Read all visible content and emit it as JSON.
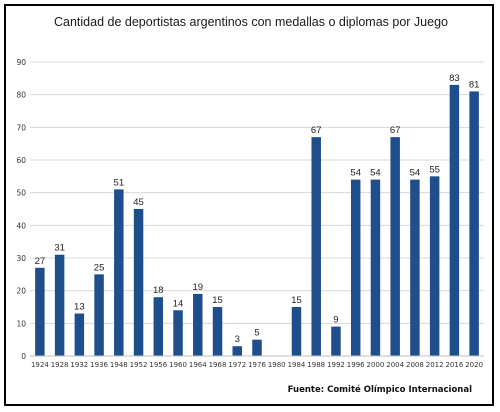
{
  "chart_data": {
    "type": "bar",
    "title": "Cantidad de deportistas argentinos con medallas o diplomas por Juego",
    "xlabel": "",
    "ylabel": "",
    "ylim": [
      0,
      90
    ],
    "yticks": [
      0,
      10,
      20,
      30,
      40,
      50,
      60,
      70,
      80,
      90
    ],
    "grid": true,
    "categories": [
      "1924",
      "1928",
      "1932",
      "1936",
      "1948",
      "1952",
      "1956",
      "1960",
      "1964",
      "1968",
      "1972",
      "1976",
      "1980",
      "1984",
      "1988",
      "1992",
      "1996",
      "2000",
      "2004",
      "2008",
      "2012",
      "2016",
      "2020"
    ],
    "values": [
      27,
      31,
      13,
      25,
      51,
      45,
      18,
      14,
      19,
      15,
      3,
      5,
      null,
      15,
      67,
      9,
      54,
      54,
      67,
      54,
      55,
      83,
      81
    ],
    "bar_color": "#1f4e8c",
    "source": "Fuente: Comité Olímpico Internacional"
  }
}
